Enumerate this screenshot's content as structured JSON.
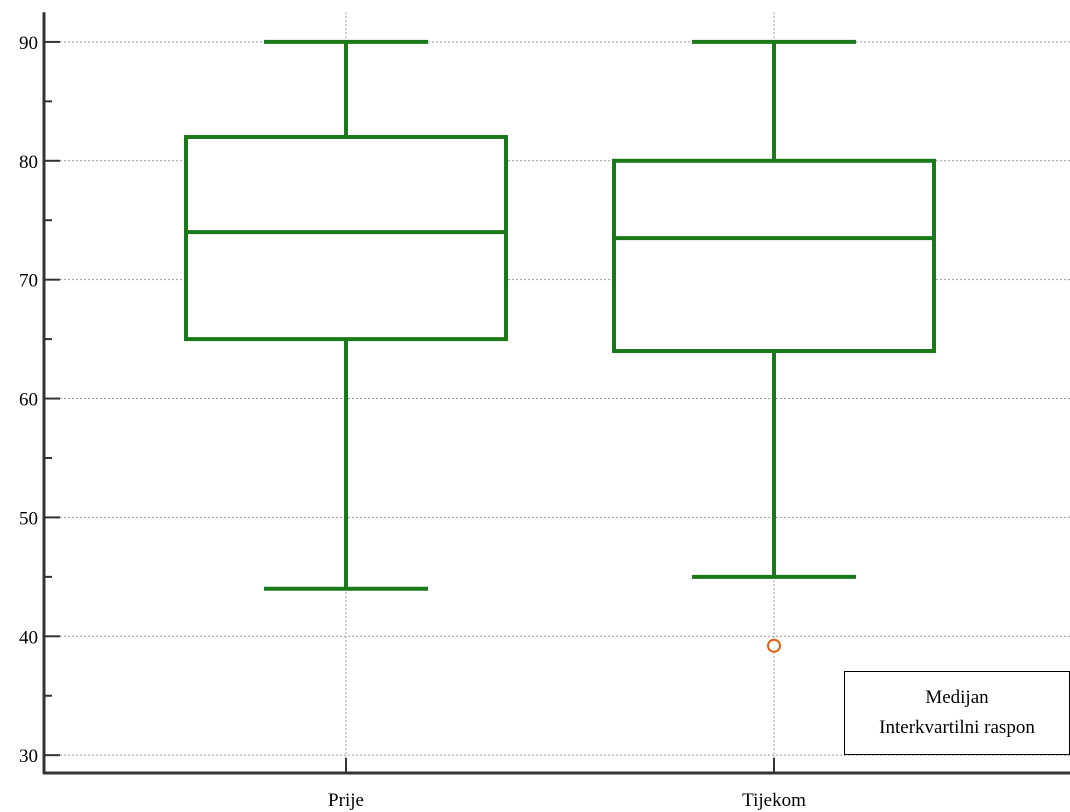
{
  "chart_data": {
    "type": "box",
    "categories": [
      "Prije",
      "Tijekom"
    ],
    "boxes": [
      {
        "category": "Prije",
        "whisker_low": 44,
        "q1": 65,
        "median": 74,
        "q3": 82,
        "whisker_high": 90,
        "outliers": []
      },
      {
        "category": "Tijekom",
        "whisker_low": 45,
        "q1": 64,
        "median": 73.5,
        "q3": 80,
        "whisker_high": 90,
        "outliers": [
          39.2
        ]
      }
    ],
    "ylim": [
      28.5,
      92.5
    ],
    "yticks": [
      30,
      40,
      50,
      60,
      70,
      80,
      90
    ],
    "grid": true,
    "legend": {
      "position": "bottom-right",
      "entries": [
        "Medijan",
        "Interkvartilni raspon"
      ]
    },
    "colors": {
      "box": "#1a7a1a",
      "outlier": "#e06010",
      "grid": "#999999",
      "axis": "#333333"
    }
  }
}
